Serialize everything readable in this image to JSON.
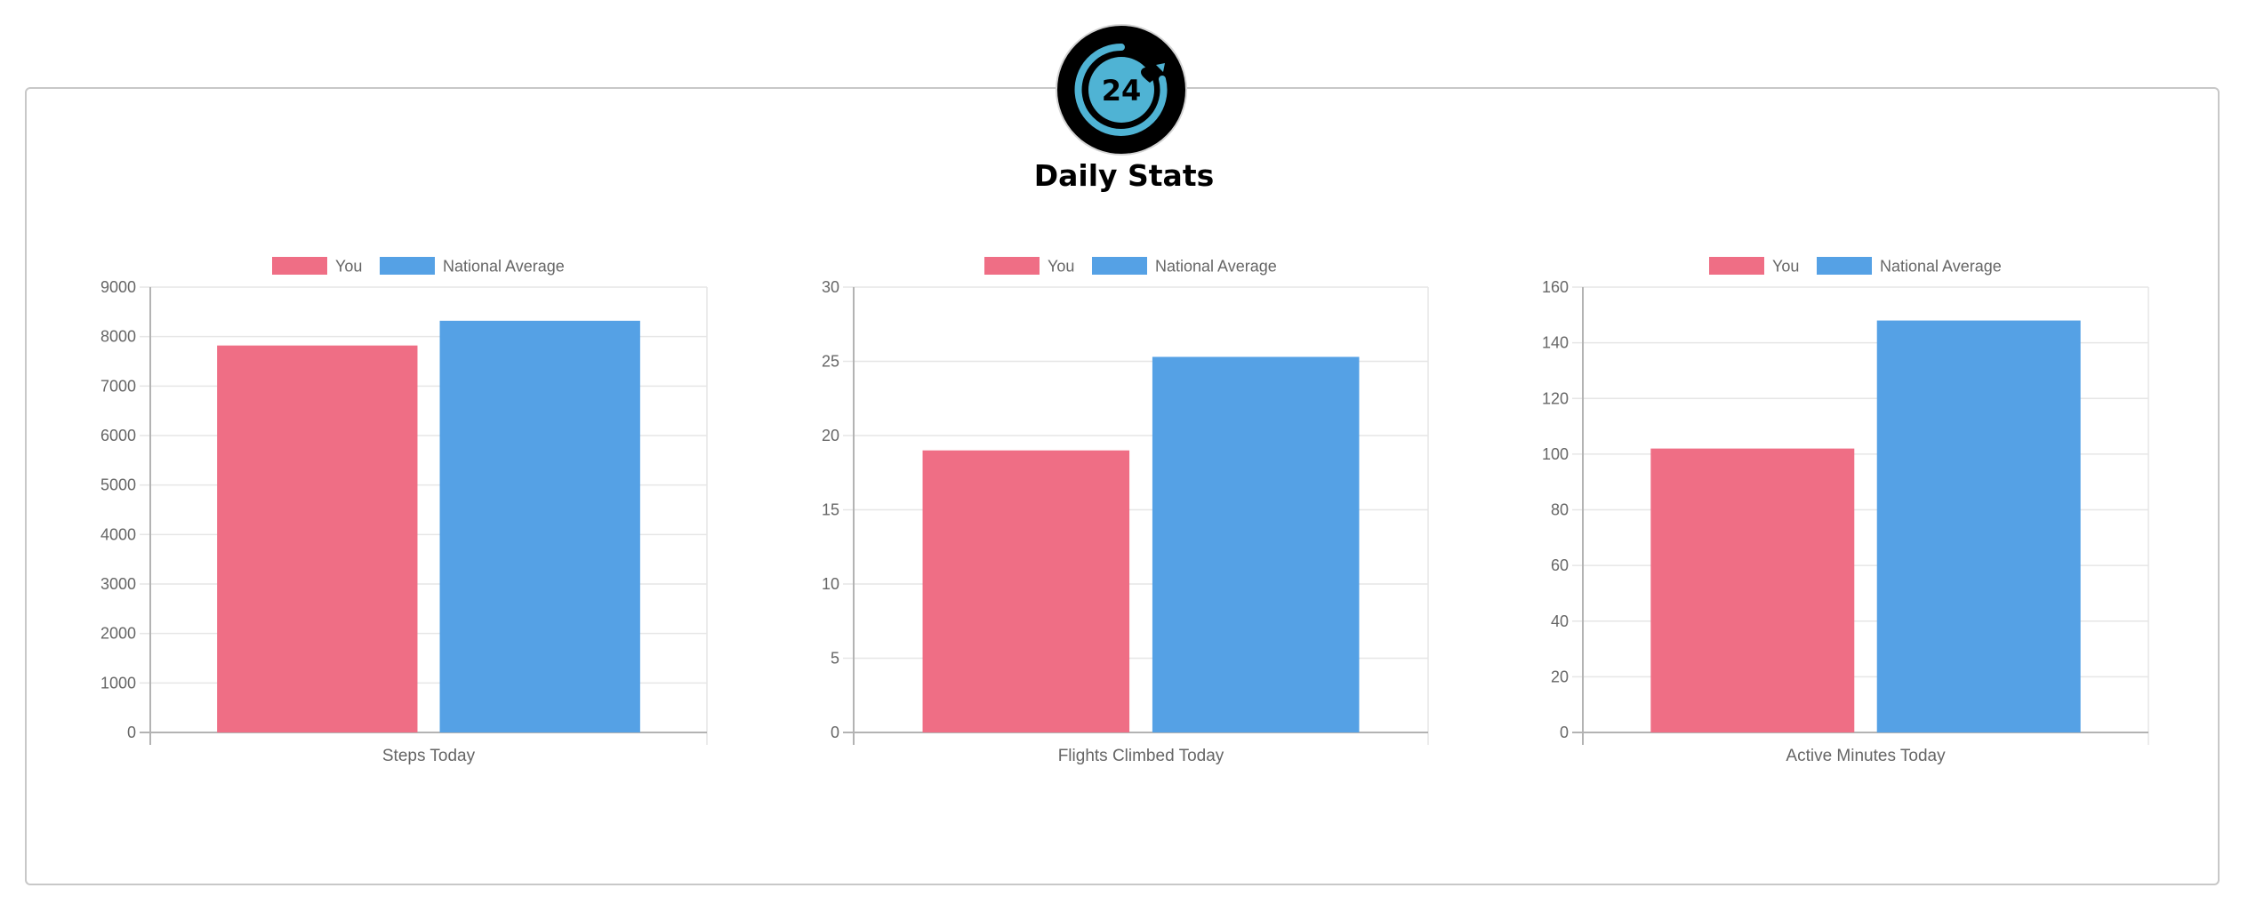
{
  "page": {
    "title": "Daily Stats",
    "badge_text": "24"
  },
  "colors": {
    "you": "#ef6e85",
    "national_average": "#55a1e5",
    "grid": "#e6e6e6",
    "axis": "#b3b3b3",
    "text": "#666666"
  },
  "legend": [
    "You",
    "National Average"
  ],
  "chart_data": [
    {
      "type": "bar",
      "categories": [
        "Steps Today"
      ],
      "series": [
        {
          "name": "You",
          "values": [
            7820
          ]
        },
        {
          "name": "National Average",
          "values": [
            8320
          ]
        }
      ],
      "xlabel": "",
      "ylabel": "",
      "ylim": [
        0,
        9000
      ],
      "ticks": [
        "0",
        "1000",
        "2000",
        "3000",
        "4000",
        "5000",
        "6000",
        "7000",
        "8000",
        "9000"
      ],
      "grid": true,
      "legend_position": "top"
    },
    {
      "type": "bar",
      "categories": [
        "Flights Climbed Today"
      ],
      "series": [
        {
          "name": "You",
          "values": [
            19
          ]
        },
        {
          "name": "National Average",
          "values": [
            25.3
          ]
        }
      ],
      "xlabel": "",
      "ylabel": "",
      "ylim": [
        0,
        30
      ],
      "ticks": [
        "0",
        "5",
        "10",
        "15",
        "20",
        "25",
        "30"
      ],
      "grid": true,
      "legend_position": "top"
    },
    {
      "type": "bar",
      "categories": [
        "Active Minutes Today"
      ],
      "series": [
        {
          "name": "You",
          "values": [
            102
          ]
        },
        {
          "name": "National Average",
          "values": [
            148
          ]
        }
      ],
      "xlabel": "",
      "ylabel": "",
      "ylim": [
        0,
        160
      ],
      "ticks": [
        "0",
        "20",
        "40",
        "60",
        "80",
        "100",
        "120",
        "140",
        "160"
      ],
      "grid": true,
      "legend_position": "top"
    }
  ]
}
